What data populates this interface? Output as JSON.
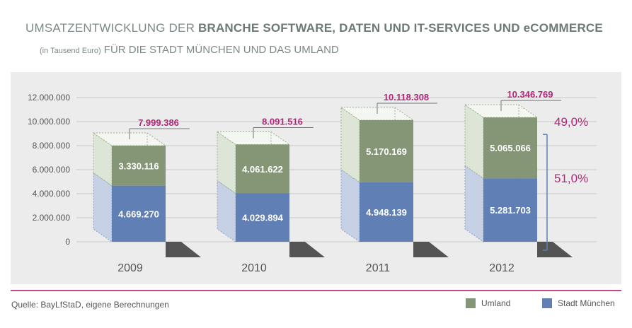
{
  "header": {
    "title_light": "UMSATZENTWICKLUNG DER",
    "title_bold": "BRANCHE SOFTWARE, DATEN UND IT-SERVICES UND eCOMMERCE",
    "subtitle_small": "(in Tausend Euro)",
    "subtitle_main": "FÜR DIE STADT MÜNCHEN UND DAS UMLAND"
  },
  "footer": {
    "source": "Quelle: BayLfStaD, eigene Berechnungen"
  },
  "colors": {
    "umland": "#859676",
    "muenchen": "#5f7fb5",
    "total": "#b0287a",
    "percent": "#b0287a"
  },
  "chart_data": {
    "type": "bar",
    "stacked": true,
    "categories": [
      "2009",
      "2010",
      "2011",
      "2012"
    ],
    "series": [
      {
        "name": "Stadt München",
        "values": [
          4669270,
          4029894,
          4948139,
          5281703
        ],
        "labels": [
          "4.669.270",
          "4.029.894",
          "4.948.139",
          "5.281.703"
        ]
      },
      {
        "name": "Umland",
        "values": [
          3330116,
          4061622,
          5170169,
          5065066
        ],
        "labels": [
          "3.330.116",
          "4.061.622",
          "5.170.169",
          "5.065.066"
        ]
      }
    ],
    "totals": [
      7999386,
      8091516,
      10118308,
      10346769
    ],
    "total_labels": [
      "7.999.386",
      "8.091.516",
      "10.118.308",
      "10.346.769"
    ],
    "ylim": [
      0,
      12000000
    ],
    "yticks": [
      0,
      2000000,
      4000000,
      6000000,
      8000000,
      10000000,
      12000000
    ],
    "ytick_labels": [
      "0",
      "2.000.000",
      "4.000.000",
      "6.000.000",
      "8.000.000",
      "10.000.000",
      "12.000.000"
    ],
    "annotations": {
      "umland_share_2012": "49,0%",
      "muenchen_share_2012": "51,0%"
    },
    "legend": {
      "position": "bottom-right",
      "entries": [
        "Umland",
        "Stadt München"
      ]
    },
    "grid": true
  }
}
